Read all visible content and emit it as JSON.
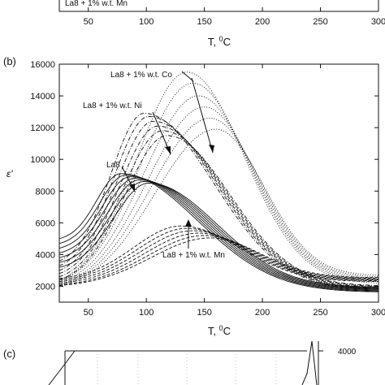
{
  "top_strip": {
    "legend_fragment": "La8 + 1% w.t. Mn",
    "x_ticks": [
      "50",
      "100",
      "150",
      "200",
      "250",
      "300"
    ],
    "xlabel": "T, ",
    "xlabel_sup": "0",
    "xlabel_tail": "C"
  },
  "bottom_strip": {
    "panel_letter": "(c)",
    "right_tick": "4000"
  },
  "chart_data": {
    "type": "line",
    "panel_letter": "(b)",
    "xlabel": "T, ",
    "xlabel_sup": "0",
    "xlabel_tail": "C",
    "ylabel": "ε'",
    "xlim": [
      25,
      300
    ],
    "ylim": [
      1000,
      16000
    ],
    "x_ticks": [
      50,
      100,
      150,
      200,
      250,
      300
    ],
    "y_ticks": [
      2000,
      4000,
      6000,
      8000,
      10000,
      12000,
      14000,
      16000
    ],
    "grid": false,
    "annotations": [
      {
        "text": "La8 + 1% w.t. Co",
        "x": 100,
        "y": 14800
      },
      {
        "text": "La8 + 1% w.t. Ni",
        "x": 75,
        "y": 12200
      },
      {
        "text": "La8",
        "x": 75,
        "y": 8700
      },
      {
        "text": "La8 + 1% w.t. Mn",
        "x": 200,
        "y": 3300
      }
    ],
    "series": [
      {
        "style": "solid",
        "peaks_x": [
          78,
          82,
          86,
          90,
          94,
          98,
          102
        ],
        "peaks_y": [
          9100,
          9000,
          8900,
          8800,
          8700,
          8600,
          8500
        ],
        "start_y": [
          5000,
          4700,
          4400,
          4100,
          3800,
          3500,
          3200
        ],
        "end_y": [
          1650,
          1700,
          1750,
          1800,
          1850,
          1900,
          1950
        ]
      },
      {
        "style": "dashdot",
        "peaks_x": [
          98,
          102,
          106,
          110,
          114,
          118
        ],
        "peaks_y": [
          12900,
          12700,
          12400,
          12100,
          11800,
          11500
        ],
        "start_y": [
          3600,
          3300,
          3000,
          2800,
          2600,
          2400
        ],
        "end_y": [
          1800,
          1850,
          1900,
          1950,
          2000,
          2050
        ]
      },
      {
        "style": "dotted",
        "peaks_x": [
          135,
          140,
          145,
          150,
          155,
          160
        ],
        "peaks_y": [
          15500,
          14800,
          14000,
          13300,
          12600,
          11900
        ],
        "start_y": [
          2400,
          2300,
          2200,
          2100,
          2050,
          2000
        ],
        "end_y": [
          2200,
          2300,
          2400,
          2500,
          2600,
          2700
        ]
      },
      {
        "style": "dashed",
        "peaks_x": [
          130,
          135,
          140,
          145,
          150,
          155
        ],
        "peaks_y": [
          5800,
          5650,
          5500,
          5350,
          5200,
          5050
        ],
        "start_y": [
          2500,
          2400,
          2300,
          2200,
          2100,
          2050
        ],
        "end_y": [
          2300,
          2350,
          2400,
          2450,
          2500,
          2550
        ]
      }
    ]
  }
}
